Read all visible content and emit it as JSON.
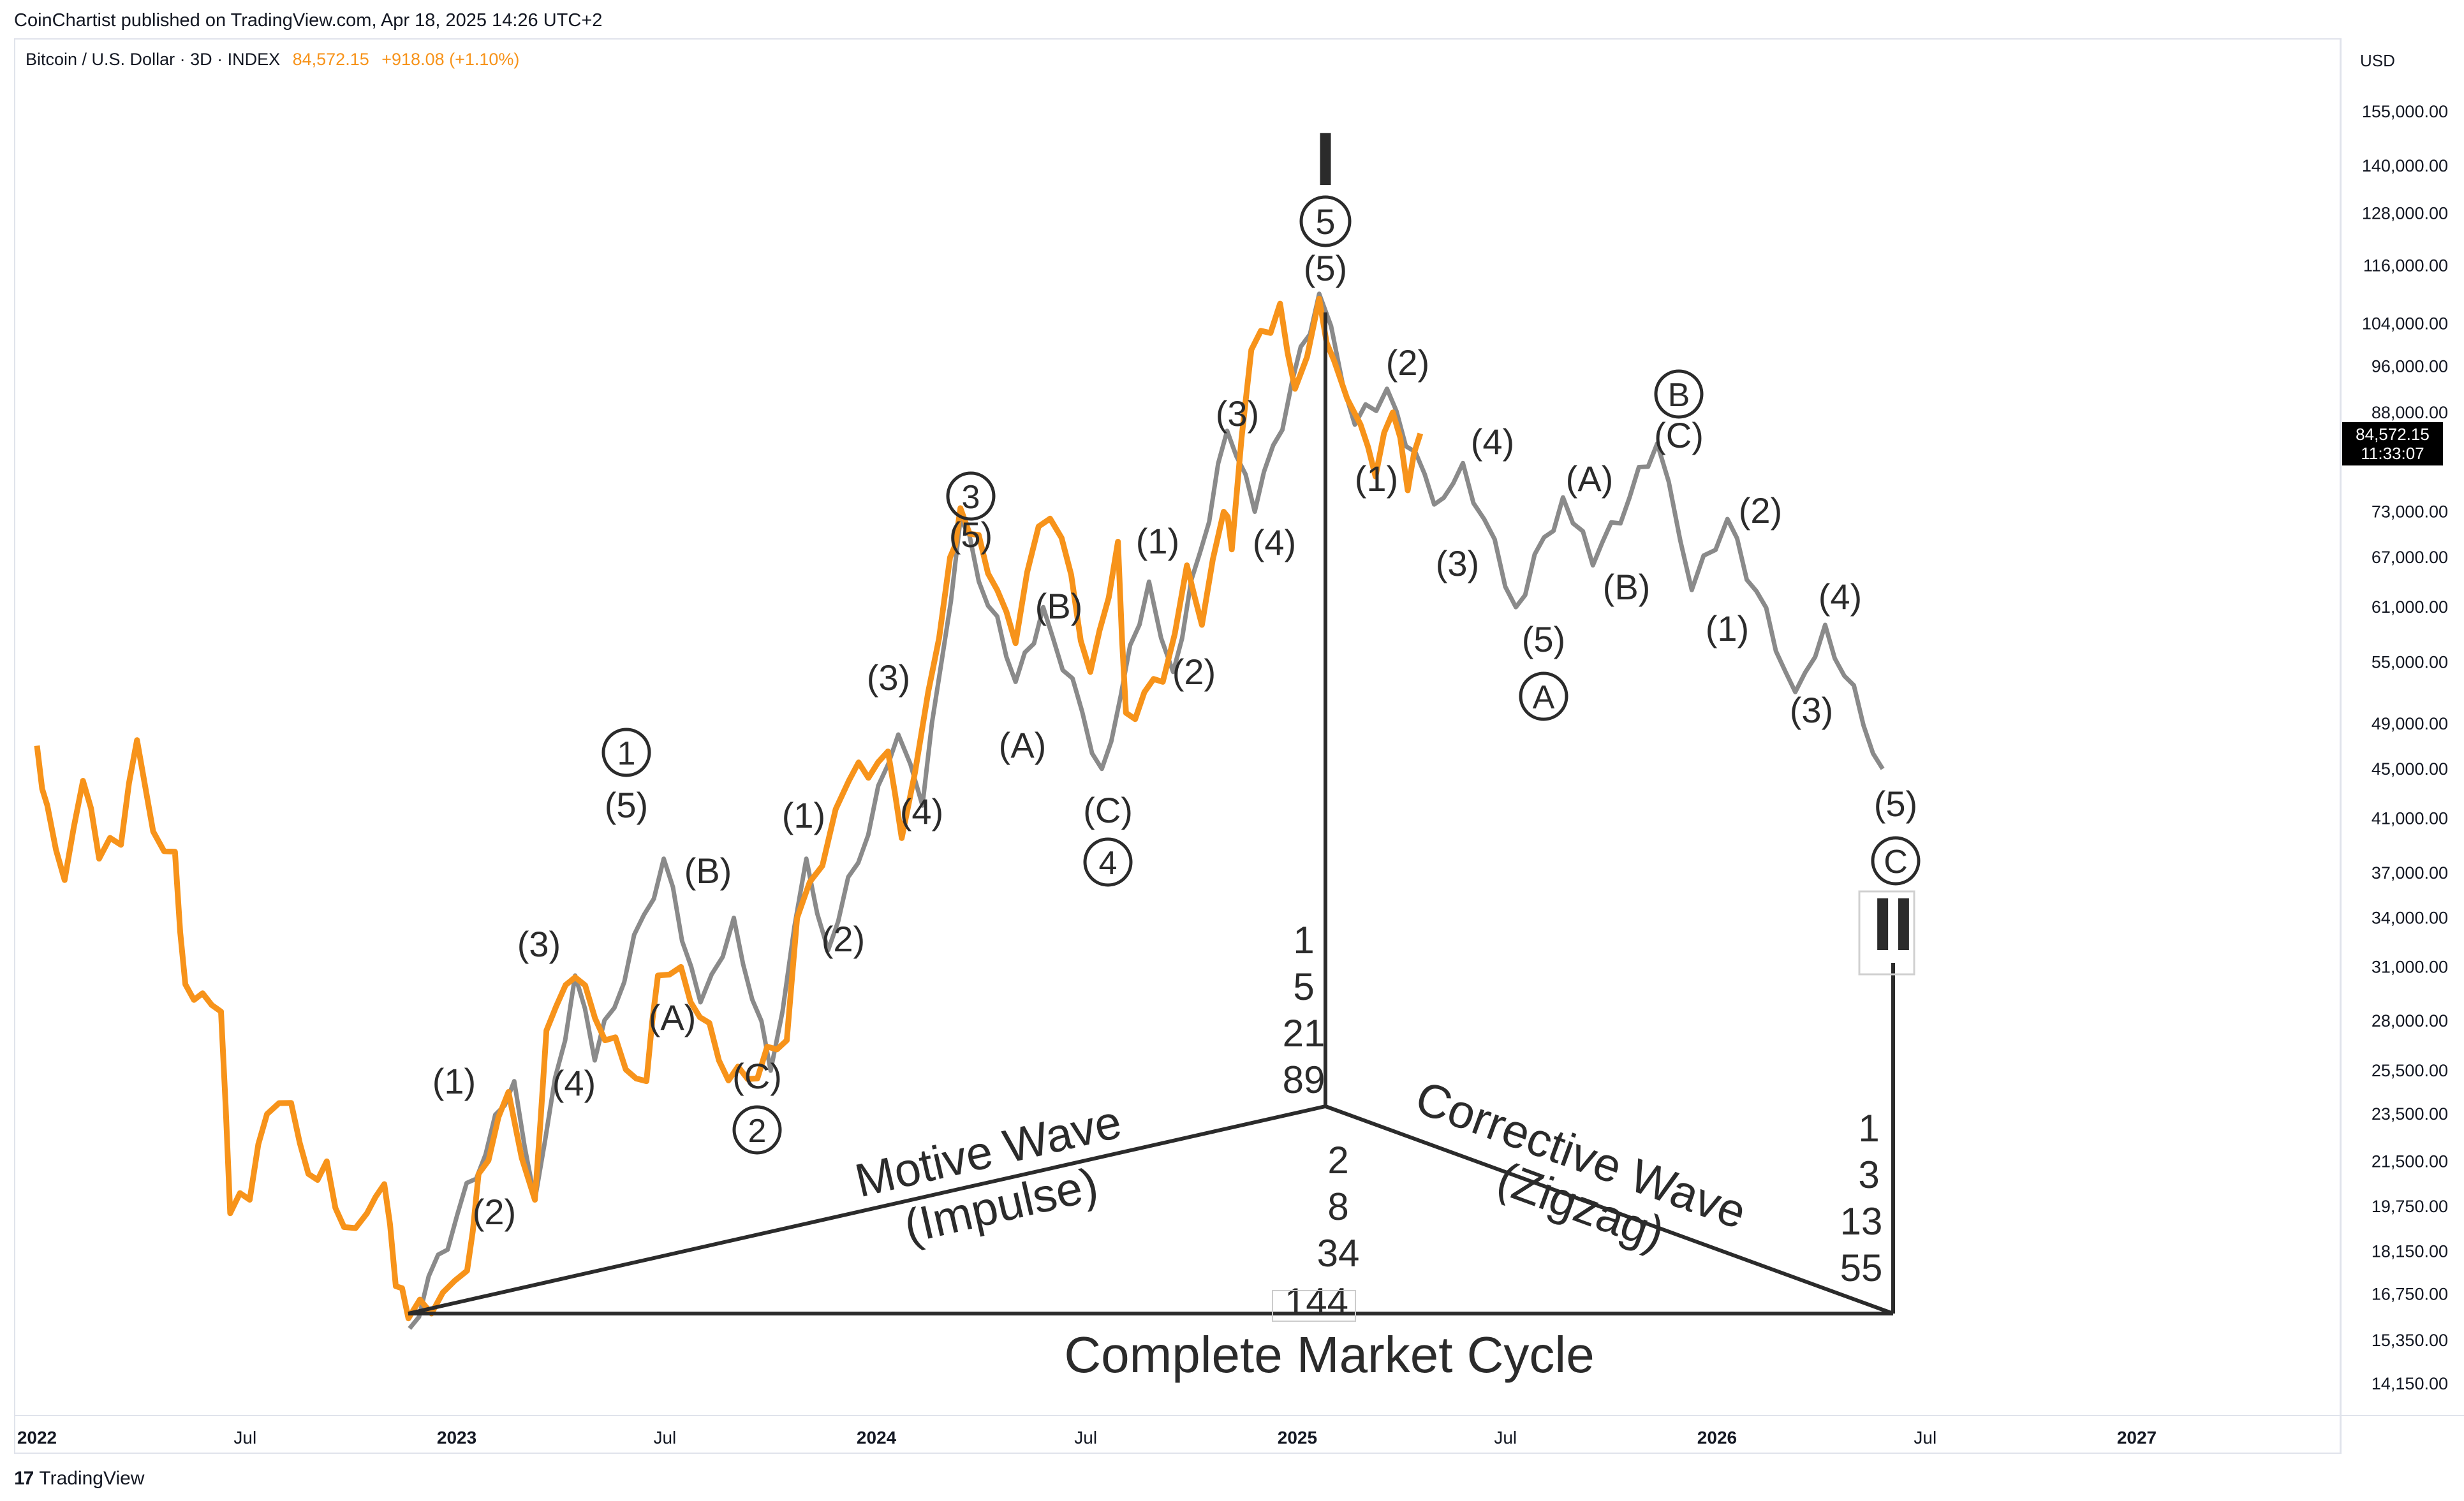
{
  "header": {
    "published_by": "CoinChartist published on TradingView.com, Apr 18, 2025 14:26 UTC+2"
  },
  "legend": {
    "symbol": "Bitcoin / U.S. Dollar · 3D · INDEX",
    "price": "84,572.15",
    "change": "+918.08 (+1.10%)"
  },
  "price_axis": {
    "currency": "USD",
    "ticks": [
      "155,000.00",
      "140,000.00",
      "128,000.00",
      "116,000.00",
      "104,000.00",
      "96,000.00",
      "88,000.00",
      "73,000.00",
      "67,000.00",
      "61,000.00",
      "55,000.00",
      "49,000.00",
      "45,000.00",
      "41,000.00",
      "37,000.00",
      "34,000.00",
      "31,000.00",
      "28,000.00",
      "25,500.00",
      "23,500.00",
      "21,500.00",
      "19,750.00",
      "18,150.00",
      "16,750.00",
      "15,350.00",
      "14,150.00"
    ],
    "last_price_label": "84,572.15",
    "countdown_label": "11:33:07"
  },
  "time_axis": {
    "ticks": [
      "2022",
      "Jul",
      "2023",
      "Jul",
      "2024",
      "Jul",
      "2025",
      "Jul",
      "2026",
      "Jul",
      "2027"
    ]
  },
  "footer": {
    "brand": "TradingView",
    "logo_mark": "17"
  },
  "colors": {
    "price_line": "#f7931a",
    "wave_line": "#8a8a8a",
    "annotation": "#2b2b2b",
    "grid": "#e0e3eb",
    "badge_bg": "#000000"
  },
  "annotations": {
    "cycle_wave_top": "I",
    "cycle_wave_bottom": "II",
    "fib_motive": [
      "1",
      "5",
      "21",
      "89"
    ],
    "fib_corrective": [
      "2",
      "8",
      "34",
      "144"
    ],
    "fib_right": [
      "1",
      "3",
      "13",
      "55"
    ],
    "motive_title": "Motive Wave",
    "motive_sub": "(Impulse)",
    "corrective_title": "Corrective Wave",
    "corrective_sub": "(Zigzag)",
    "cycle_label": "Complete Market Cycle",
    "wave_labels": [
      "(1)",
      "(2)",
      "(3)",
      "(4)",
      "(5)",
      "(A)",
      "(B)",
      "(C)",
      "1",
      "2",
      "3",
      "4",
      "5",
      "A",
      "B",
      "C"
    ]
  },
  "chart_data": {
    "type": "line",
    "title": "Bitcoin / U.S. Dollar · 3D · INDEX",
    "xlabel": "",
    "ylabel": "",
    "y_scale": "log",
    "ylim": [
      13500,
      170000
    ],
    "xlim": [
      "2022-01-01",
      "2027-04-01"
    ],
    "grid": false,
    "series": [
      {
        "name": "Bitcoin / U.S. Dollar",
        "color": "#f7931a",
        "points": [
          [
            "2022-01-01",
            47000
          ],
          [
            "2022-01-10",
            42000
          ],
          [
            "2022-01-25",
            36500
          ],
          [
            "2022-02-10",
            44000
          ],
          [
            "2022-02-24",
            38000
          ],
          [
            "2022-03-15",
            39000
          ],
          [
            "2022-03-29",
            47500
          ],
          [
            "2022-04-12",
            40000
          ],
          [
            "2022-05-01",
            38500
          ],
          [
            "2022-05-10",
            30000
          ],
          [
            "2022-05-25",
            29500
          ],
          [
            "2022-06-10",
            28500
          ],
          [
            "2022-06-18",
            19500
          ],
          [
            "2022-07-05",
            20000
          ],
          [
            "2022-07-20",
            23500
          ],
          [
            "2022-08-10",
            24000
          ],
          [
            "2022-08-25",
            21000
          ],
          [
            "2022-09-10",
            21500
          ],
          [
            "2022-09-25",
            19000
          ],
          [
            "2022-10-15",
            19500
          ],
          [
            "2022-10-30",
            20600
          ],
          [
            "2022-11-09",
            17000
          ],
          [
            "2022-11-20",
            16000
          ],
          [
            "2022-12-20",
            16800
          ],
          [
            "2023-01-10",
            17500
          ],
          [
            "2023-01-20",
            21000
          ],
          [
            "2023-02-15",
            24500
          ],
          [
            "2023-03-10",
            20000
          ],
          [
            "2023-03-20",
            27500
          ],
          [
            "2023-04-14",
            30400
          ],
          [
            "2023-05-10",
            27000
          ],
          [
            "2023-06-15",
            25000
          ],
          [
            "2023-06-25",
            30500
          ],
          [
            "2023-07-15",
            31000
          ],
          [
            "2023-08-17",
            26000
          ],
          [
            "2023-09-11",
            25100
          ],
          [
            "2023-10-15",
            27000
          ],
          [
            "2023-10-24",
            34000
          ],
          [
            "2023-11-15",
            37500
          ],
          [
            "2023-12-08",
            44000
          ],
          [
            "2024-01-11",
            46500
          ],
          [
            "2024-01-23",
            39500
          ],
          [
            "2024-02-15",
            52000
          ],
          [
            "2024-03-05",
            67000
          ],
          [
            "2024-03-14",
            73500
          ],
          [
            "2024-04-15",
            63000
          ],
          [
            "2024-05-01",
            57000
          ],
          [
            "2024-05-21",
            71000
          ],
          [
            "2024-06-10",
            69500
          ],
          [
            "2024-07-05",
            54000
          ],
          [
            "2024-07-29",
            69000
          ],
          [
            "2024-08-05",
            50000
          ],
          [
            "2024-09-06",
            53000
          ],
          [
            "2024-09-27",
            66000
          ],
          [
            "2024-10-10",
            59000
          ],
          [
            "2024-10-29",
            73000
          ],
          [
            "2024-11-05",
            68000
          ],
          [
            "2024-11-22",
            99000
          ],
          [
            "2024-12-17",
            108000
          ],
          [
            "2024-12-30",
            92000
          ],
          [
            "2025-01-20",
            109000
          ],
          [
            "2025-02-02",
            97000
          ],
          [
            "2025-02-25",
            86000
          ],
          [
            "2025-03-10",
            78000
          ],
          [
            "2025-03-25",
            88000
          ],
          [
            "2025-04-07",
            76000
          ],
          [
            "2025-04-18",
            84572
          ]
        ]
      },
      {
        "name": "Elliott wave projection",
        "color": "#8a8a8a",
        "points": [
          [
            "2022-11-21",
            15700
          ],
          [
            "2023-02-20",
            25000
          ],
          [
            "2023-03-10",
            20000
          ],
          [
            "2023-04-14",
            30500
          ],
          [
            "2023-05-01",
            26000
          ],
          [
            "2023-06-30",
            38000
          ],
          [
            "2023-08-01",
            29000
          ],
          [
            "2023-08-30",
            34000
          ],
          [
            "2023-10-01",
            25500
          ],
          [
            "2023-11-01",
            38000
          ],
          [
            "2023-11-20",
            32000
          ],
          [
            "2024-01-20",
            48000
          ],
          [
            "2024-02-10",
            42000
          ],
          [
            "2024-03-14",
            72000
          ],
          [
            "2024-05-01",
            53000
          ],
          [
            "2024-05-25",
            61000
          ],
          [
            "2024-07-15",
            45000
          ],
          [
            "2024-08-25",
            64000
          ],
          [
            "2024-09-15",
            54000
          ],
          [
            "2024-11-01",
            85000
          ],
          [
            "2024-11-25",
            73000
          ],
          [
            "2025-01-20",
            110000
          ],
          [
            "2025-02-20",
            86000
          ],
          [
            "2025-03-20",
            92000
          ],
          [
            "2025-04-30",
            74000
          ],
          [
            "2025-05-25",
            80000
          ],
          [
            "2025-07-10",
            61000
          ],
          [
            "2025-08-20",
            75000
          ],
          [
            "2025-09-15",
            66000
          ],
          [
            "2025-11-10",
            83000
          ],
          [
            "2025-12-10",
            63000
          ],
          [
            "2026-01-10",
            72000
          ],
          [
            "2026-03-10",
            52000
          ],
          [
            "2026-04-05",
            59000
          ],
          [
            "2026-05-25",
            45000
          ]
        ]
      }
    ]
  }
}
